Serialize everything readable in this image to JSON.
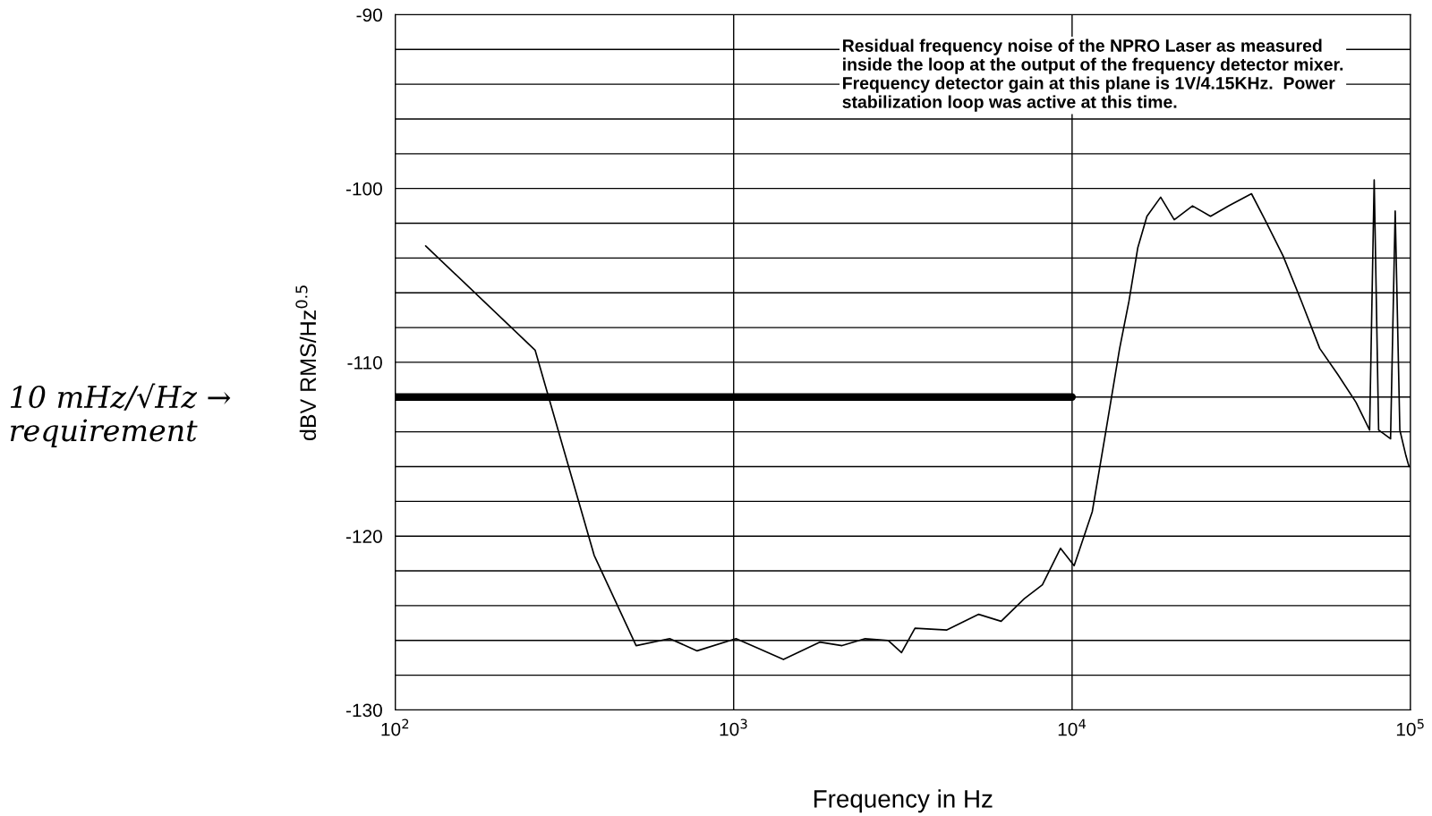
{
  "chart_data": {
    "type": "line",
    "xlabel": "Frequency in Hz",
    "ylabel": "dBV RMS/Hz$^{0.5}$",
    "log": "x",
    "grid": true,
    "xlim": [
      100,
      100000
    ],
    "ylim": [
      -130,
      -90
    ],
    "xticks": [
      {
        "value": 100,
        "label": "10$^{2}$"
      },
      {
        "value": 1000,
        "label": "10$^{3}$"
      },
      {
        "value": 10000,
        "label": "10$^{4}$"
      },
      {
        "value": 100000,
        "label": "10$^{5}$"
      }
    ],
    "yticks": [
      -130,
      {
        "value": -128,
        "label": null
      },
      {
        "value": -126,
        "label": null
      },
      {
        "value": -124,
        "label": null
      },
      {
        "value": -122,
        "label": null
      },
      -120,
      {
        "value": -118,
        "label": null
      },
      {
        "value": -116,
        "label": null
      },
      {
        "value": -114,
        "label": null
      },
      {
        "value": -112,
        "label": null
      },
      -110,
      {
        "value": -108,
        "label": null
      },
      {
        "value": -106,
        "label": null
      },
      {
        "value": -104,
        "label": null
      },
      {
        "value": -102,
        "label": null
      },
      -100,
      {
        "value": -98,
        "label": null
      },
      {
        "value": -96,
        "label": null
      },
      {
        "value": -94,
        "label": null
      },
      {
        "value": -92,
        "label": null
      },
      -90
    ],
    "series": [
      {
        "color": "#000000",
        "x": [
          123,
          259,
          387,
          515,
          647,
          780,
          1016,
          1164,
          1403,
          1796,
          2091,
          2447,
          2858,
          3133,
          3434,
          4266,
          5297,
          6170,
          7223,
          8170,
          9240,
          10140,
          11470,
          12600,
          13820,
          14720,
          15640,
          16640,
          18270,
          20040,
          22690,
          25650,
          29040,
          33890,
          37150,
          42060,
          47630,
          53910,
          60970,
          69000,
          75700,
          78100,
          80500,
          87300,
          90100,
          93000,
          97000,
          99000
        ],
        "values": [
          -103.3,
          -109.3,
          -121.1,
          -126.3,
          -125.9,
          -126.6,
          -125.9,
          -126.4,
          -127.1,
          -126.1,
          -126.3,
          -125.9,
          -126.0,
          -126.7,
          -125.3,
          -125.4,
          -124.5,
          -124.9,
          -123.6,
          -122.8,
          -120.7,
          -121.7,
          -118.6,
          -113.9,
          -109.2,
          -106.5,
          -103.4,
          -101.6,
          -100.5,
          -101.8,
          -101.0,
          -101.6,
          -101.0,
          -100.3,
          -101.8,
          -103.9,
          -106.5,
          -109.2,
          -110.7,
          -112.3,
          -113.9,
          -99.5,
          -113.9,
          -114.4,
          -101.3,
          -113.9,
          -115.4,
          -116.0
        ]
      },
      {
        "color": "#000000",
        "x": [
          100,
          10000
        ],
        "values": [
          -112,
          -112
        ]
      }
    ],
    "annotations": [
      "Residual frequency noise of the NPRO Laser as measured\ninside the loop at the output of the frequency detector mixer.\nFrequency detector gain at this plane is 1V/4.15KHz.  Power\nstabilization loop was active at this time.",
      "10 mHz/√Hz →\nrequirement"
    ]
  }
}
